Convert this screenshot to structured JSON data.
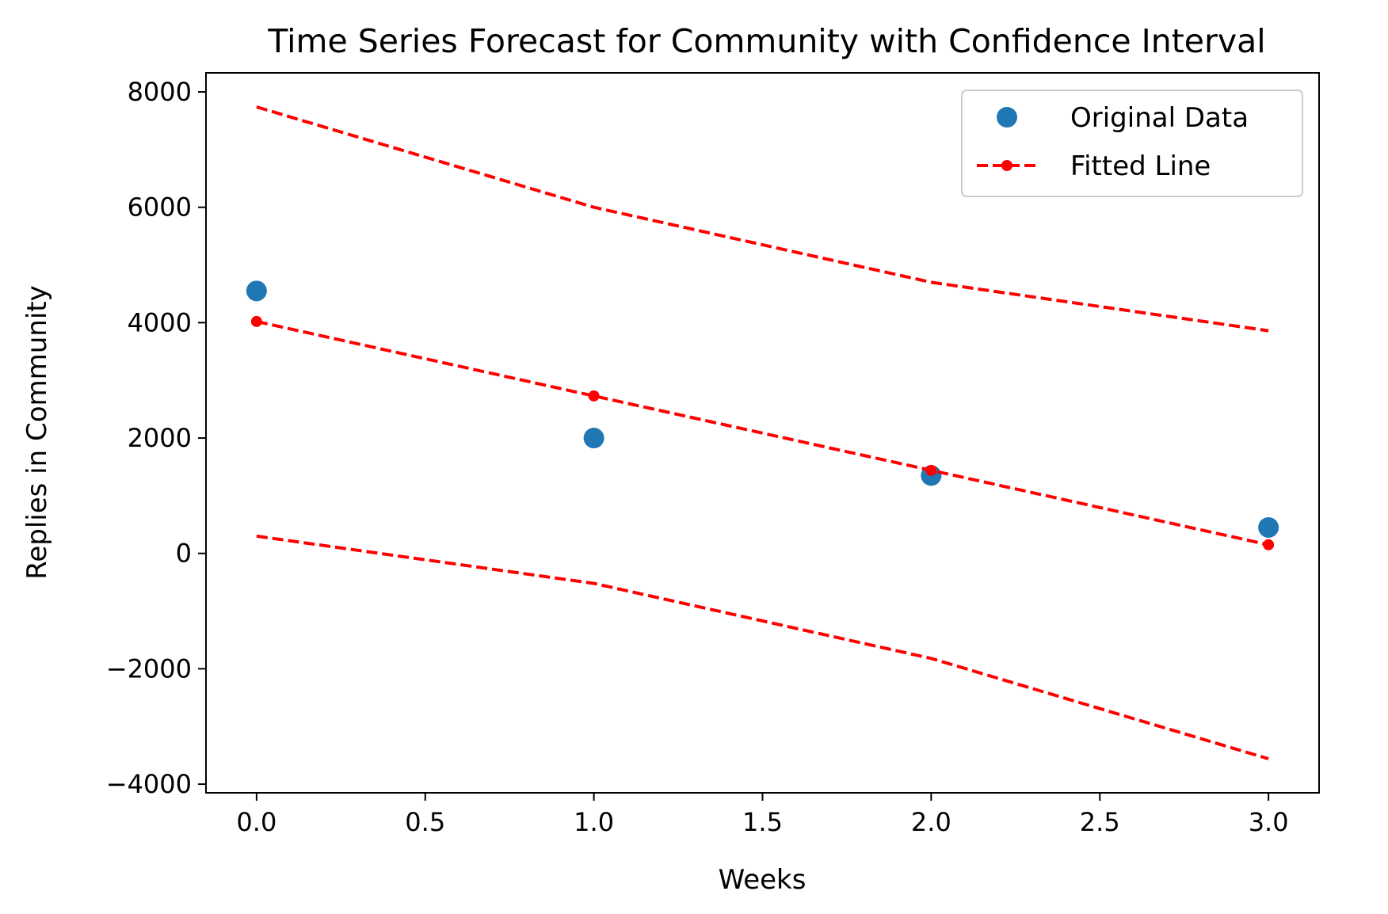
{
  "chart_data": {
    "type": "line",
    "title": "Time Series Forecast for Community with Confidence Interval",
    "xlabel": "Weeks",
    "ylabel": "Replies in Community",
    "xlim": [
      -0.15,
      3.15
    ],
    "ylim": [
      -4150,
      8330
    ],
    "x_ticks": [
      0.0,
      0.5,
      1.0,
      1.5,
      2.0,
      2.5,
      3.0
    ],
    "x_tick_labels": [
      "0.0",
      "0.5",
      "1.0",
      "1.5",
      "2.0",
      "2.5",
      "3.0"
    ],
    "y_ticks": [
      -4000,
      -2000,
      0,
      2000,
      4000,
      6000,
      8000
    ],
    "y_tick_labels": [
      "−4000",
      "−2000",
      "0",
      "2000",
      "4000",
      "6000",
      "8000"
    ],
    "grid": false,
    "legend_position": "top-right",
    "colors": {
      "original": "#1f77b4",
      "fitted": "#ff0000",
      "interval": "#ff0000"
    },
    "series": [
      {
        "name": "Original Data",
        "style": "markers",
        "x": [
          0,
          1,
          2,
          3
        ],
        "y": [
          4550,
          2000,
          1350,
          450
        ]
      },
      {
        "name": "Fitted Line",
        "style": "dashed-with-markers",
        "x": [
          0,
          1,
          2,
          3
        ],
        "y": [
          4020,
          2730,
          1440,
          150
        ]
      },
      {
        "style": "dashed",
        "x": [
          0,
          1,
          2,
          3
        ],
        "y": [
          7740,
          6000,
          4700,
          3860
        ]
      },
      {
        "style": "dashed",
        "x": [
          0,
          1,
          2,
          3
        ],
        "y": [
          300,
          -520,
          -1820,
          -3560
        ]
      }
    ]
  }
}
